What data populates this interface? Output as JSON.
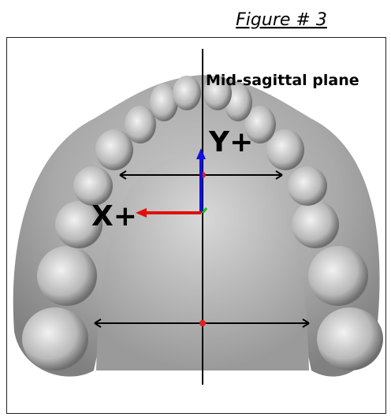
{
  "figure": {
    "caption": "Figure # 3"
  },
  "labels": {
    "plane": "Mid-sagittal plane",
    "y_axis": "Y+",
    "x_axis": "X+"
  }
}
